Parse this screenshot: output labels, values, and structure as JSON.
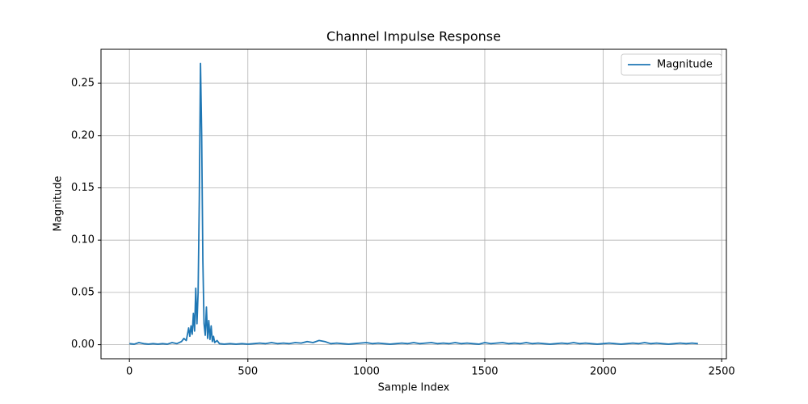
{
  "chart_data": {
    "type": "line",
    "title": "Channel Impulse Response",
    "x_label": "Sample Index",
    "y_label": "Magnitude",
    "x": [
      0,
      20,
      40,
      60,
      80,
      100,
      120,
      140,
      160,
      180,
      200,
      220,
      230,
      240,
      250,
      255,
      260,
      265,
      270,
      275,
      280,
      285,
      290,
      295,
      300,
      305,
      310,
      315,
      320,
      325,
      330,
      335,
      340,
      345,
      350,
      355,
      360,
      370,
      380,
      400,
      425,
      450,
      475,
      500,
      525,
      550,
      575,
      600,
      625,
      650,
      675,
      700,
      725,
      750,
      775,
      800,
      825,
      850,
      875,
      900,
      925,
      950,
      975,
      1000,
      1025,
      1050,
      1075,
      1100,
      1125,
      1150,
      1175,
      1200,
      1225,
      1250,
      1275,
      1300,
      1325,
      1350,
      1375,
      1400,
      1425,
      1450,
      1475,
      1500,
      1525,
      1550,
      1575,
      1600,
      1625,
      1650,
      1675,
      1700,
      1725,
      1750,
      1775,
      1800,
      1825,
      1850,
      1875,
      1900,
      1925,
      1950,
      1975,
      2000,
      2025,
      2050,
      2075,
      2100,
      2125,
      2150,
      2175,
      2200,
      2225,
      2250,
      2275,
      2300,
      2325,
      2350,
      2375,
      2400
    ],
    "series": [
      {
        "name": "Magnitude",
        "color": "#1f77b4",
        "values": [
          0.001,
          0.0005,
          0.002,
          0.001,
          0.0005,
          0.001,
          0.0005,
          0.001,
          0.0005,
          0.002,
          0.001,
          0.003,
          0.006,
          0.004,
          0.016,
          0.008,
          0.018,
          0.01,
          0.03,
          0.013,
          0.054,
          0.02,
          0.05,
          0.14,
          0.269,
          0.2,
          0.08,
          0.02,
          0.009,
          0.036,
          0.006,
          0.023,
          0.005,
          0.018,
          0.003,
          0.008,
          0.002,
          0.004,
          0.001,
          0.0005,
          0.001,
          0.0005,
          0.001,
          0.0005,
          0.001,
          0.0015,
          0.001,
          0.002,
          0.001,
          0.0015,
          0.001,
          0.002,
          0.0015,
          0.003,
          0.002,
          0.004,
          0.003,
          0.001,
          0.0015,
          0.001,
          0.0005,
          0.001,
          0.0015,
          0.002,
          0.001,
          0.0015,
          0.001,
          0.0005,
          0.001,
          0.0015,
          0.001,
          0.002,
          0.001,
          0.0015,
          0.002,
          0.001,
          0.0015,
          0.001,
          0.002,
          0.001,
          0.0015,
          0.001,
          0.0005,
          0.002,
          0.001,
          0.0015,
          0.002,
          0.001,
          0.0015,
          0.001,
          0.002,
          0.001,
          0.0015,
          0.001,
          0.0005,
          0.001,
          0.0015,
          0.001,
          0.002,
          0.001,
          0.0015,
          0.001,
          0.0005,
          0.001,
          0.0015,
          0.001,
          0.0005,
          0.001,
          0.0015,
          0.001,
          0.002,
          0.001,
          0.0015,
          0.001,
          0.0005,
          0.001,
          0.0015,
          0.001,
          0.0015,
          0.001
        ]
      }
    ],
    "xlim": [
      -120,
      2520
    ],
    "ylim": [
      -0.01345,
      0.2825
    ],
    "xticks": [
      0,
      500,
      1000,
      1500,
      2000,
      2500
    ],
    "yticks": [
      {
        "value": 0,
        "label": "0.00"
      },
      0.05,
      {
        "value": 0.1,
        "label": "0.10"
      },
      0.15,
      {
        "value": 0.2,
        "label": "0.20"
      },
      0.25
    ],
    "grid": true,
    "legend": "upper right"
  }
}
